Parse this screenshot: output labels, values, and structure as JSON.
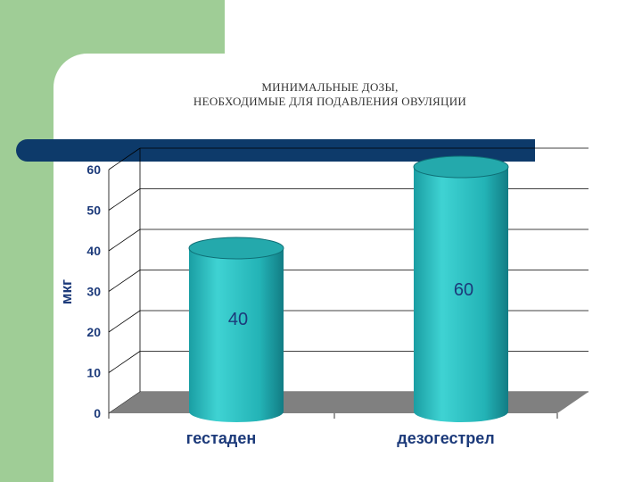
{
  "slide": {
    "title_line1": "МИНИМАЛЬНЫЕ ДОЗЫ,",
    "title_line2": "НЕОБХОДИМЫЕ ДЛЯ ПОДАВЛЕНИЯ ОВУЛЯЦИИ"
  },
  "colors": {
    "side_block": "#9fcd96",
    "accent_bar": "#0d3a6a",
    "cylinder": "#2bbfc0",
    "floor": "#808080",
    "label": "#1c3a7a"
  },
  "chart_data": {
    "type": "bar",
    "style": "3d-cylinder",
    "title": "МИНИМАЛЬНЫЕ ДОЗЫ, НЕОБХОДИМЫЕ ДЛЯ ПОДАВЛЕНИЯ ОВУЛЯЦИИ",
    "categories": [
      "гестаден",
      "дезогестрел"
    ],
    "values": [
      40,
      60
    ],
    "data_labels": [
      "40",
      "60"
    ],
    "ylabel": "мкг",
    "xlabel": "",
    "ylim": [
      0,
      60
    ],
    "yticks": [
      "0",
      "10",
      "20",
      "30",
      "40",
      "50",
      "60"
    ],
    "grid": true,
    "legend": "none"
  }
}
